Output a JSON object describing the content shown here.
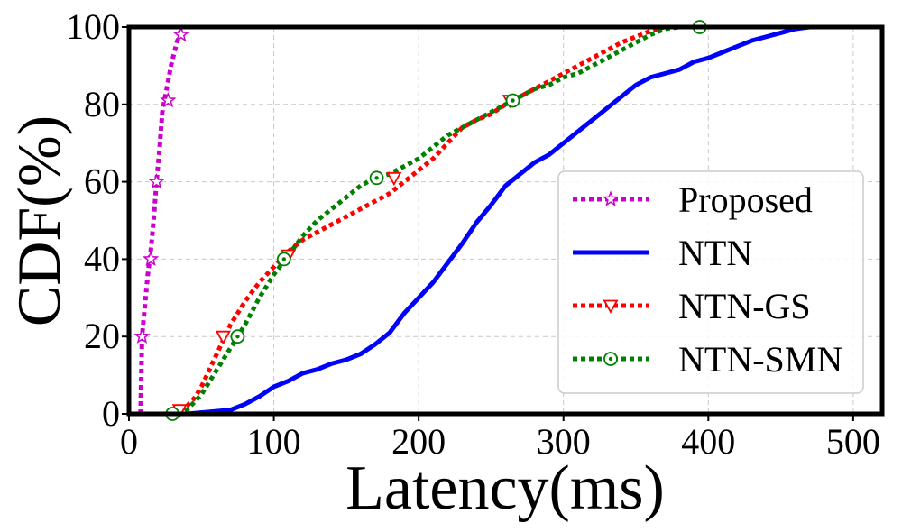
{
  "chart_data": {
    "type": "line",
    "title": "",
    "xlabel": "Latency(ms)",
    "ylabel": "CDF(%)",
    "xlim": [
      0,
      520
    ],
    "ylim": [
      0,
      100
    ],
    "xticks": [
      0,
      100,
      200,
      300,
      400,
      500
    ],
    "yticks": [
      0,
      20,
      40,
      60,
      80,
      100
    ],
    "xtick_labels": [
      "0",
      "100",
      "200",
      "300",
      "400",
      "500"
    ],
    "ytick_labels": [
      "0",
      "20",
      "40",
      "60",
      "80",
      "100"
    ],
    "grid": true,
    "legend_position": "lower-right",
    "series": [
      {
        "name": "Proposed",
        "color": "#cc00cc",
        "style": "dotted",
        "marker": "star",
        "x": [
          8,
          9,
          11,
          13,
          15,
          17,
          19,
          21,
          23,
          25,
          27,
          29,
          31,
          33,
          35,
          36
        ],
        "y": [
          0,
          20,
          28,
          36,
          42,
          50,
          60,
          68,
          78,
          82,
          86,
          90,
          93,
          96,
          98,
          100
        ],
        "marker_x": [
          9,
          15,
          19,
          27,
          36
        ],
        "marker_y": [
          20,
          40,
          60,
          81,
          98
        ]
      },
      {
        "name": "NTN",
        "color": "#0000ff",
        "style": "solid",
        "marker": "none",
        "x": [
          40,
          55,
          70,
          80,
          90,
          100,
          110,
          120,
          130,
          140,
          150,
          160,
          170,
          180,
          190,
          200,
          210,
          220,
          230,
          240,
          250,
          260,
          270,
          280,
          290,
          300,
          310,
          320,
          330,
          340,
          350,
          360,
          370,
          380,
          390,
          400,
          410,
          420,
          430,
          440,
          450,
          460,
          470,
          480,
          490
        ],
        "y": [
          0,
          0.5,
          1,
          2.5,
          4.5,
          7,
          8.5,
          10.5,
          11.5,
          13,
          14,
          15.5,
          18,
          21,
          26,
          30,
          34,
          39,
          44,
          49.5,
          54,
          59,
          62,
          65,
          67,
          70,
          73,
          76,
          79,
          82,
          85,
          87,
          88,
          89,
          91,
          92,
          93.5,
          95,
          96.5,
          97.5,
          98.5,
          99.5,
          100,
          100,
          100
        ]
      },
      {
        "name": "NTN-GS",
        "color": "#ff0000",
        "style": "dotted",
        "marker": "triangle-down",
        "x": [
          30,
          36,
          40,
          45,
          50,
          55,
          60,
          65,
          70,
          80,
          90,
          100,
          110,
          120,
          130,
          140,
          150,
          160,
          170,
          180,
          190,
          200,
          210,
          220,
          230,
          240,
          250,
          260,
          270,
          280,
          290,
          300,
          310,
          320,
          330,
          340,
          350,
          360,
          370,
          380,
          390
        ],
        "y": [
          0,
          1,
          2,
          4,
          7,
          11,
          15,
          19,
          23,
          29,
          34,
          38,
          42,
          45,
          47,
          49,
          51,
          53,
          55,
          57,
          60,
          63,
          66,
          70,
          74,
          76,
          77.5,
          80,
          82,
          84,
          86,
          88,
          90,
          92,
          94,
          96,
          97.5,
          99,
          100,
          100,
          100
        ],
        "marker_x": [
          35,
          65,
          110,
          183,
          263
        ],
        "marker_y": [
          1,
          20,
          41,
          61,
          81
        ]
      },
      {
        "name": "NTN-SMN",
        "color": "#008000",
        "style": "dotted",
        "marker": "circle-dot",
        "x": [
          28,
          35,
          40,
          45,
          50,
          55,
          60,
          65,
          70,
          75,
          80,
          90,
          100,
          110,
          120,
          130,
          140,
          150,
          160,
          170,
          180,
          190,
          200,
          210,
          220,
          230,
          240,
          250,
          260,
          270,
          280,
          290,
          300,
          310,
          320,
          330,
          340,
          350,
          360,
          370,
          380,
          390,
          395
        ],
        "y": [
          0,
          0,
          1,
          3,
          5,
          8,
          11,
          14,
          17,
          20,
          23,
          30,
          36,
          41,
          46,
          50,
          53,
          56,
          59,
          61,
          62,
          64,
          66,
          69,
          72,
          74,
          76,
          78,
          80,
          82,
          84,
          85,
          87,
          88,
          90,
          92,
          94,
          96,
          98,
          99.5,
          100,
          100,
          100
        ],
        "marker_x": [
          30,
          75,
          107,
          171,
          265,
          394
        ],
        "marker_y": [
          0,
          20,
          40,
          61,
          81,
          100
        ]
      }
    ]
  }
}
